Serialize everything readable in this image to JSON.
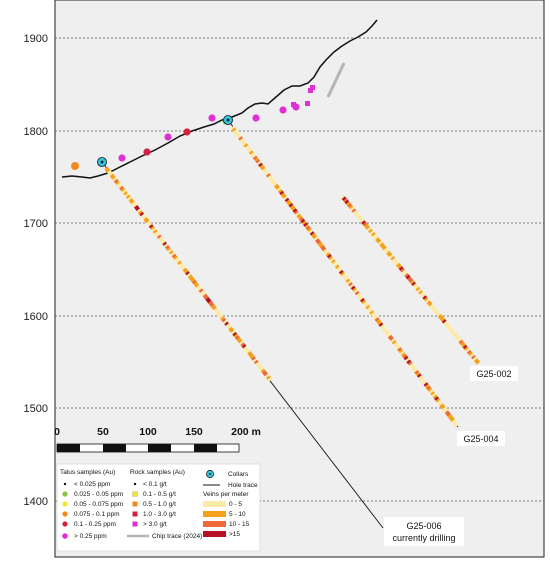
{
  "elevation_labels": [
    "1900",
    "1800",
    "1700",
    "1600",
    "1500",
    "1400"
  ],
  "scale_bar": {
    "ticks": [
      "0",
      "50",
      "100",
      "150",
      "200 m"
    ]
  },
  "holes": [
    {
      "name": "G25-002"
    },
    {
      "name": "G25-004"
    },
    {
      "name": "G25-006",
      "note": "currently drilling"
    }
  ],
  "legend": {
    "talus": {
      "title": "Talus samples (Au)",
      "items": [
        {
          "label": "< 0.025 ppm",
          "color": "#111111",
          "kind": "dot"
        },
        {
          "label": "0.025 - 0.05 ppm",
          "color": "#8bc34a",
          "kind": "circle"
        },
        {
          "label": "0.05 - 0.075 ppm",
          "color": "#f2e33a",
          "kind": "circle"
        },
        {
          "label": "0.075 - 0.1 ppm",
          "color": "#f28a1e",
          "kind": "circle"
        },
        {
          "label": "0.1 - 0.25 ppm",
          "color": "#d4213d",
          "kind": "circle"
        },
        {
          "label": "> 0.25 ppm",
          "color": "#e02fd2",
          "kind": "circle"
        }
      ]
    },
    "rock": {
      "title": "Rock samples (Au)",
      "items": [
        {
          "label": "< 0.1 g/t",
          "color": "#111111",
          "kind": "dot"
        },
        {
          "label": "0.1 - 0.5 g/t",
          "color": "#f2e33a",
          "kind": "square"
        },
        {
          "label": "0.5 - 1.0 g/t",
          "color": "#f28a1e",
          "kind": "square"
        },
        {
          "label": "1.0 - 3.0 g/t",
          "color": "#d4213d",
          "kind": "square"
        },
        {
          "label": "> 3.0 g/t",
          "color": "#e02fd2",
          "kind": "square"
        }
      ],
      "chip": "Chip trace (2024)"
    },
    "collars": "Collars",
    "hole_trace": "Hole trace",
    "veins": {
      "title": "Veins per meter",
      "items": [
        {
          "label": "0 - 5",
          "color": "#fdeaa8"
        },
        {
          "label": "5 - 10",
          "color": "#f6a11c"
        },
        {
          "label": "10 - 15",
          "color": "#ef6a3a"
        },
        {
          "label": ">15",
          "color": "#b51224"
        }
      ]
    }
  },
  "colors": {
    "vein_0_5": "#fdeaa8",
    "vein_5_10": "#f6a11c",
    "vein_10_15": "#ef6a3a",
    "vein_15": "#b51224",
    "collar": "#2ec7e0"
  }
}
